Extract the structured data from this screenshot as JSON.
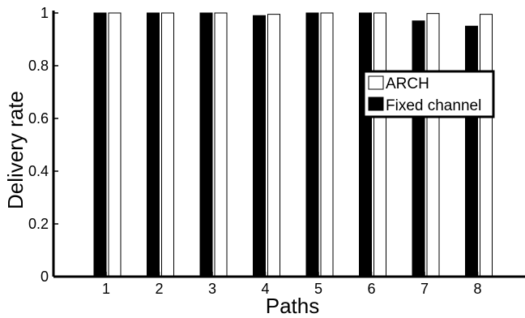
{
  "chart_data": {
    "type": "bar",
    "xlabel": "Paths",
    "ylabel": "Delivery rate",
    "categories": [
      "1",
      "2",
      "3",
      "4",
      "5",
      "6",
      "7",
      "8"
    ],
    "ylim": [
      0,
      1
    ],
    "yticks": [
      "0",
      "0.2",
      "0.4",
      "0.6",
      "0.8",
      "1"
    ],
    "ytick_values": [
      0,
      0.2,
      0.4,
      0.6,
      0.8,
      1
    ],
    "series": [
      {
        "name": "Fixed channel",
        "color": "#000000",
        "values": [
          1.0,
          1.0,
          1.0,
          0.99,
          1.0,
          1.0,
          0.97,
          0.95
        ]
      },
      {
        "name": "ARCH",
        "color": "#ffffff",
        "values": [
          1.0,
          1.0,
          1.0,
          0.995,
          1.0,
          1.0,
          0.998,
          0.995
        ]
      }
    ],
    "legend": {
      "placement": "right",
      "entries": [
        "ARCH",
        "Fixed channel"
      ]
    },
    "grid": false
  }
}
